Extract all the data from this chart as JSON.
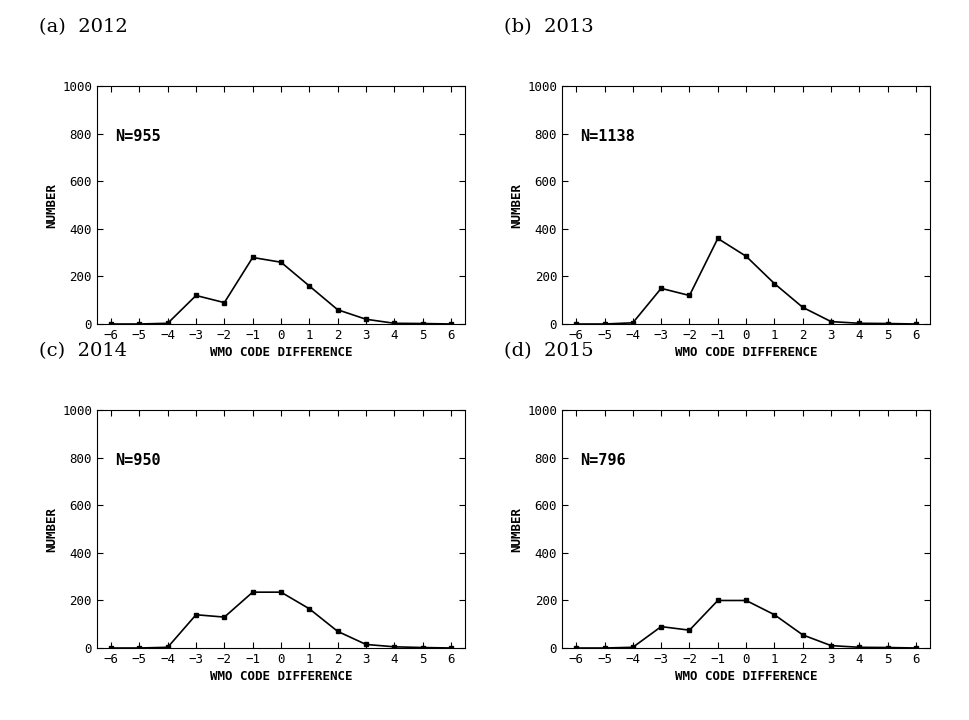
{
  "panels": [
    {
      "label": "(a)  2012",
      "N": "N=955",
      "x": [
        -6,
        -5,
        -4,
        -3,
        -2,
        -1,
        0,
        1,
        2,
        3,
        4,
        5,
        6
      ],
      "y": [
        0,
        0,
        3,
        120,
        90,
        280,
        260,
        160,
        60,
        20,
        3,
        2,
        0
      ]
    },
    {
      "label": "(b)  2013",
      "N": "N=1138",
      "x": [
        -6,
        -5,
        -4,
        -3,
        -2,
        -1,
        0,
        1,
        2,
        3,
        4,
        5,
        6
      ],
      "y": [
        0,
        0,
        5,
        150,
        120,
        360,
        285,
        170,
        70,
        10,
        3,
        2,
        0
      ]
    },
    {
      "label": "(c)  2014",
      "N": "N=950",
      "x": [
        -6,
        -5,
        -4,
        -3,
        -2,
        -1,
        0,
        1,
        2,
        3,
        4,
        5,
        6
      ],
      "y": [
        0,
        0,
        3,
        140,
        130,
        235,
        235,
        165,
        70,
        15,
        5,
        2,
        0
      ]
    },
    {
      "label": "(d)  2015",
      "N": "N=796",
      "x": [
        -6,
        -5,
        -4,
        -3,
        -2,
        -1,
        0,
        1,
        2,
        3,
        4,
        5,
        6
      ],
      "y": [
        0,
        0,
        3,
        90,
        75,
        200,
        200,
        140,
        55,
        10,
        3,
        2,
        0
      ]
    }
  ],
  "xlabel": "WMO CODE DIFFERENCE",
  "ylabel": "NUMBER",
  "xlim": [
    -6.5,
    6.5
  ],
  "ylim": [
    0,
    1000
  ],
  "yticks": [
    0,
    200,
    400,
    600,
    800,
    1000
  ],
  "xticks": [
    -6,
    -5,
    -4,
    -3,
    -2,
    -1,
    0,
    1,
    2,
    3,
    4,
    5,
    6
  ],
  "line_color": "#000000",
  "marker": "s",
  "markersize": 3,
  "linewidth": 1.2,
  "label_fontsize": 14,
  "axis_label_fontsize": 9,
  "tick_fontsize": 9,
  "n_label_fontsize": 11,
  "background_color": "#ffffff"
}
